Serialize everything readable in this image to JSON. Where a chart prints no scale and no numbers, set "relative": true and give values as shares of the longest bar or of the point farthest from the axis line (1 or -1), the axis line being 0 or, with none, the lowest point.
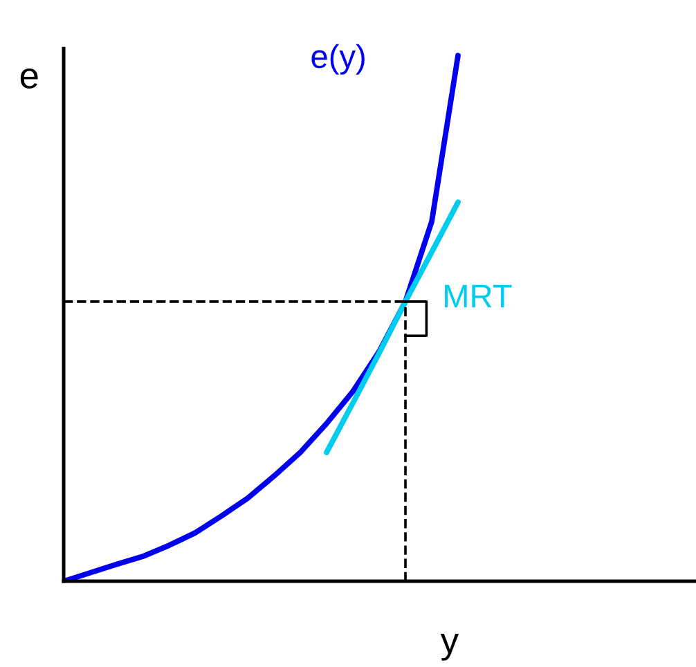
{
  "chart_data": {
    "type": "line",
    "relative": true,
    "xlabel": "y",
    "ylabel": "e",
    "categories": [
      null,
      null,
      null,
      null,
      null,
      null,
      null,
      null,
      null,
      null,
      null,
      null,
      null,
      null,
      null,
      null,
      null,
      null,
      null,
      null,
      null,
      null,
      null,
      null,
      null
    ],
    "series": [
      {
        "name": "e(y)",
        "color": "#0000ee",
        "values": [
          0,
          0.016,
          0.032,
          0.047,
          0.068,
          0.092,
          0.124,
          0.158,
          0.2,
          0.245,
          0.3,
          0.361,
          0.437,
          0.532,
          0.684,
          1,
          null,
          null,
          null,
          null,
          null,
          null,
          null,
          null,
          null
        ]
      },
      {
        "name": "MRT",
        "color": "#00ccee",
        "values": [
          null,
          null,
          null,
          null,
          null,
          null,
          null,
          null,
          null,
          null,
          0.245,
          0.339,
          0.434,
          0.532,
          0.626,
          0.721,
          null,
          null,
          null,
          null,
          null,
          null,
          null,
          null,
          null
        ]
      }
    ],
    "ref_lines": [
      {
        "axis": "y",
        "value": 0.532,
        "color": "#000000",
        "line_style": "dashed"
      }
    ],
    "marker": "none",
    "line_style": "solid",
    "grid": false,
    "legend": false
  }
}
